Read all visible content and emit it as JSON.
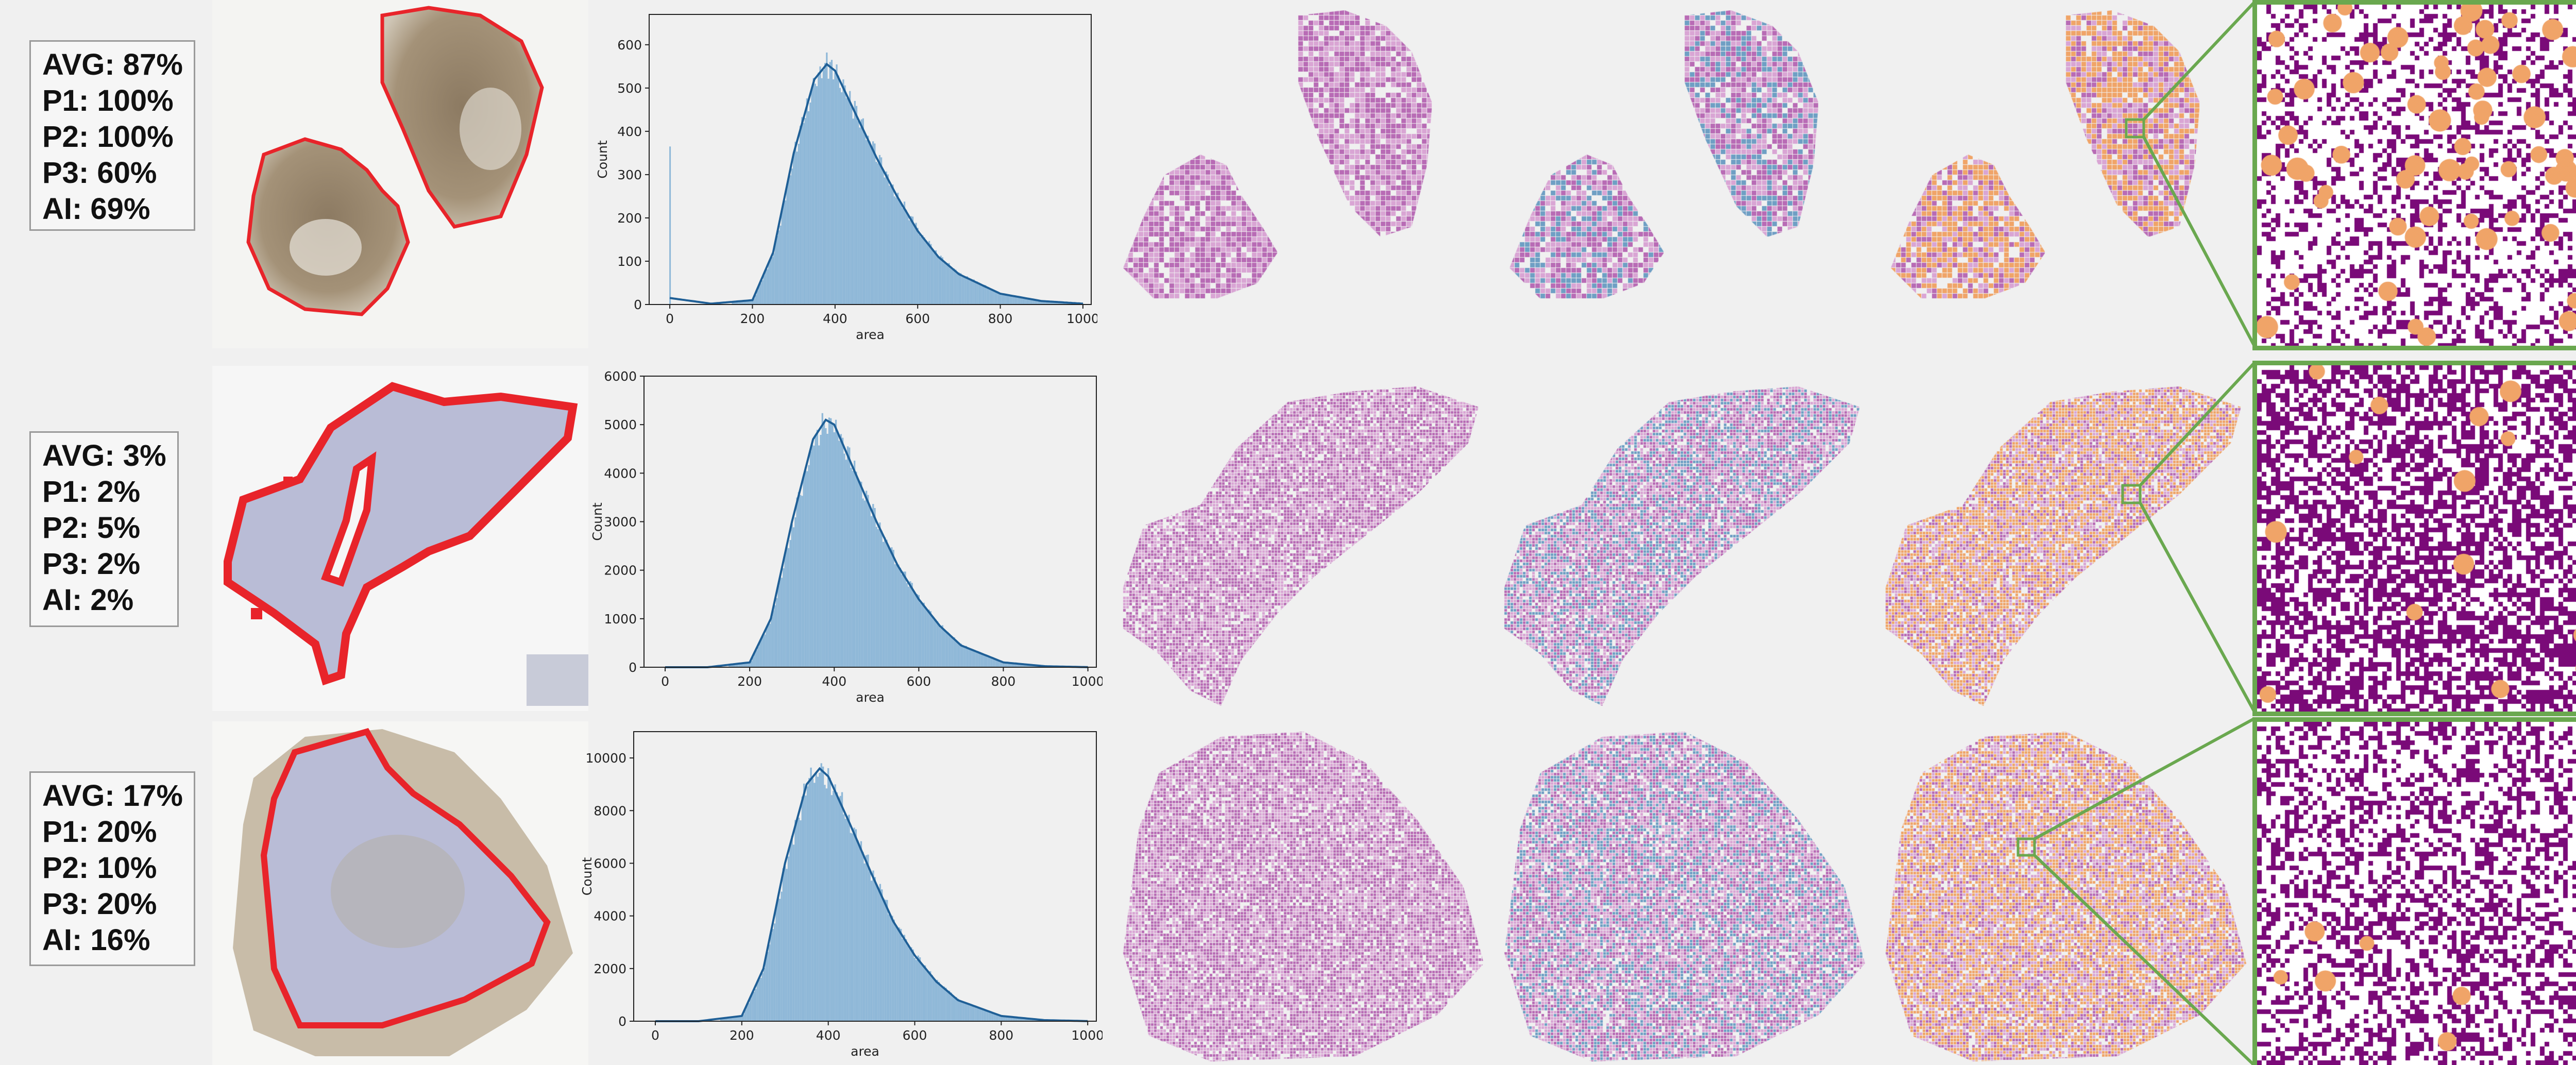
{
  "rows": [
    {
      "scores": {
        "avg": "AVG: 87%",
        "p1": "P1: 100%",
        "p2": "P2: 100%",
        "p3": "P3: 60%",
        "ai": "AI: 69%"
      },
      "chart_data": {
        "type": "area",
        "xlabel": "area",
        "ylabel": "Count",
        "xlim": [
          -50,
          1020
        ],
        "ylim": [
          0,
          670
        ],
        "xticks": [
          0,
          200,
          400,
          600,
          800,
          1000
        ],
        "yticks": [
          0,
          100,
          200,
          300,
          400,
          500,
          600
        ],
        "x": [
          0,
          100,
          200,
          250,
          300,
          350,
          380,
          400,
          450,
          500,
          550,
          600,
          650,
          700,
          800,
          900,
          1000
        ],
        "values": [
          15,
          2,
          10,
          120,
          350,
          520,
          555,
          540,
          440,
          340,
          250,
          170,
          110,
          70,
          25,
          8,
          2
        ],
        "spike": {
          "x": 0,
          "y": 365
        },
        "grid": false
      }
    },
    {
      "scores": {
        "avg": "AVG: 3%",
        "p1": "P1: 2%",
        "p2": "P2: 5%",
        "p3": "P3: 2%",
        "ai": "AI: 2%"
      },
      "chart_data": {
        "type": "area",
        "xlabel": "area",
        "ylabel": "Count",
        "xlim": [
          -50,
          1020
        ],
        "ylim": [
          0,
          6000
        ],
        "xticks": [
          0,
          200,
          400,
          600,
          800,
          1000
        ],
        "yticks": [
          0,
          1000,
          2000,
          3000,
          4000,
          5000,
          6000
        ],
        "x": [
          0,
          100,
          200,
          250,
          300,
          350,
          380,
          400,
          450,
          500,
          550,
          600,
          650,
          700,
          800,
          900,
          1000
        ],
        "values": [
          0,
          0,
          100,
          1000,
          3000,
          4700,
          5100,
          5000,
          4000,
          3000,
          2100,
          1400,
          850,
          450,
          100,
          20,
          2
        ],
        "grid": false
      }
    },
    {
      "scores": {
        "avg": "AVG: 17%",
        "p1": "P1: 20%",
        "p2": "P2: 10%",
        "p3": "P3: 20%",
        "ai": "AI: 16%"
      },
      "chart_data": {
        "type": "area",
        "xlabel": "area",
        "ylabel": "Count",
        "xlim": [
          -50,
          1020
        ],
        "ylim": [
          0,
          11000
        ],
        "xticks": [
          0,
          200,
          400,
          600,
          800,
          1000
        ],
        "yticks": [
          0,
          2000,
          4000,
          6000,
          8000,
          10000
        ],
        "x": [
          0,
          100,
          200,
          250,
          300,
          350,
          380,
          400,
          450,
          500,
          550,
          600,
          650,
          700,
          800,
          900,
          1000
        ],
        "values": [
          0,
          0,
          200,
          2000,
          6000,
          9000,
          9600,
          9300,
          7500,
          5600,
          3800,
          2500,
          1500,
          800,
          200,
          40,
          5
        ],
        "grid": false
      }
    }
  ],
  "colors": {
    "annotation_red": "#e8242a",
    "hist_fill": "#8fb8d8",
    "kde_line": "#1f5f96",
    "tissue_purple": "#b86bb5",
    "tissue_pink": "#d9a5d4",
    "tile_blue": "#6f9fc4",
    "tile_orange": "#f0a468",
    "zoom_purple": "#7a0a78",
    "zoom_green": "#6aa84f",
    "slide_brown": "#a08c74",
    "slide_blue": "#b9bcd6"
  }
}
